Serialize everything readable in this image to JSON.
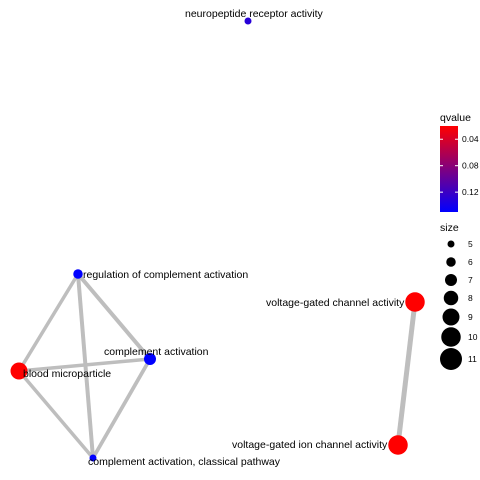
{
  "network": {
    "nodes": [
      {
        "id": "n1",
        "label": "neuropeptide receptor activity",
        "qvalue": 0.13,
        "size": 5
      },
      {
        "id": "n2",
        "label": "regulation of complement activation",
        "qvalue": 0.15,
        "size": 6
      },
      {
        "id": "n3",
        "label": "complement activation",
        "qvalue": 0.15,
        "size": 7
      },
      {
        "id": "n4",
        "label": "blood microparticle",
        "qvalue": 0.02,
        "size": 9
      },
      {
        "id": "n5",
        "label": "complement activation, classical pathway",
        "qvalue": 0.15,
        "size": 5
      },
      {
        "id": "n6",
        "label": "voltage-gated channel activity",
        "qvalue": 0.02,
        "size": 10
      },
      {
        "id": "n7",
        "label": "voltage-gated ion channel activity",
        "qvalue": 0.02,
        "size": 10
      }
    ],
    "edges": [
      {
        "from": "n2",
        "to": "n3",
        "weight": 0.6
      },
      {
        "from": "n2",
        "to": "n4",
        "weight": 0.4
      },
      {
        "from": "n2",
        "to": "n5",
        "weight": 0.6
      },
      {
        "from": "n3",
        "to": "n4",
        "weight": 0.4
      },
      {
        "from": "n3",
        "to": "n5",
        "weight": 0.5
      },
      {
        "from": "n4",
        "to": "n5",
        "weight": 0.4
      },
      {
        "from": "n6",
        "to": "n7",
        "weight": 1.0
      }
    ]
  },
  "legend": {
    "color": {
      "title": "qvalue",
      "ticks": [
        "0.04",
        "0.08",
        "0.12"
      ],
      "tick_values": [
        0.04,
        0.08,
        0.12
      ],
      "range": [
        0.02,
        0.15
      ],
      "low_color": "#ff0000",
      "high_color": "#0000ff"
    },
    "size": {
      "title": "size",
      "entries": [
        {
          "label": "5",
          "value": 5
        },
        {
          "label": "6",
          "value": 6
        },
        {
          "label": "7",
          "value": 7
        },
        {
          "label": "8",
          "value": 8
        },
        {
          "label": "9",
          "value": 9
        },
        {
          "label": "10",
          "value": 10
        },
        {
          "label": "11",
          "value": 11
        }
      ]
    }
  },
  "colors": {
    "edge": "#bebebe",
    "label": "#000000"
  }
}
